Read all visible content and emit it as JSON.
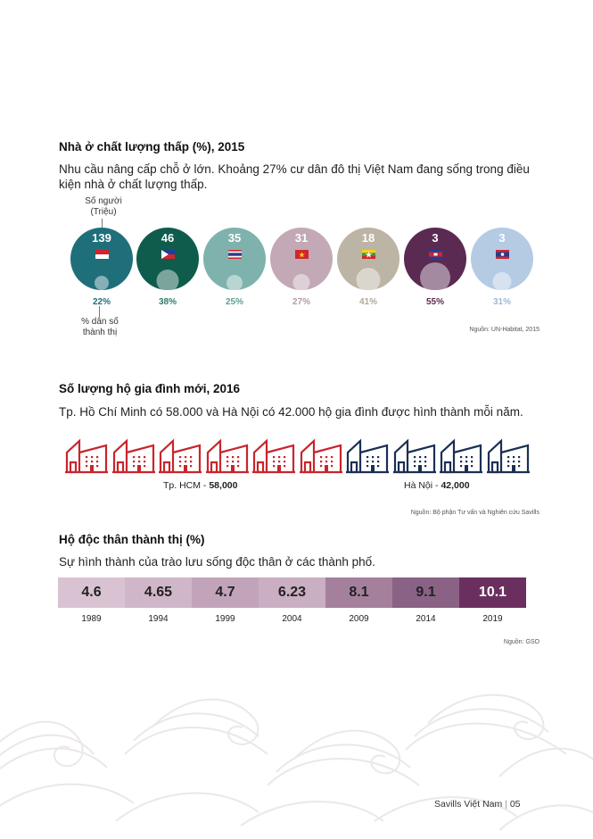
{
  "section1": {
    "title": "Nhà ở chất lượng thấp (%), 2015",
    "intro_line1": "Nhu cầu nâng cấp chỗ ở lớn. Khoảng 27% cư dân đô thị Việt Nam đang sống trong điều",
    "intro_line2": "kiện nhà ở chất lượng thấp.",
    "label_people_1": "Số người",
    "label_people_2": "(Triệu)",
    "label_urban_1": "% dân số",
    "label_urban_2": "thành thị",
    "source": "Nguồn: UN-Habitat, 2015",
    "countries": [
      {
        "people": "139",
        "pct": "22%",
        "color": "#1f6f7a",
        "pct_color": "#1f6f7a",
        "flag": "indonesia-flag",
        "value": 22
      },
      {
        "people": "46",
        "pct": "38%",
        "color": "#0f5c4c",
        "pct_color": "#2f7d6c",
        "flag": "philippines-flag",
        "value": 38
      },
      {
        "people": "35",
        "pct": "25%",
        "color": "#7fb2ad",
        "pct_color": "#5f9f99",
        "flag": "thailand-flag",
        "value": 25
      },
      {
        "people": "31",
        "pct": "27%",
        "color": "#c3a9b6",
        "pct_color": "#b69aa8",
        "flag": "vietnam-flag",
        "value": 27
      },
      {
        "people": "18",
        "pct": "41%",
        "color": "#bcb4a4",
        "pct_color": "#b0a896",
        "flag": "myanmar-flag",
        "value": 41
      },
      {
        "people": "3",
        "pct": "55%",
        "color": "#5a2a52",
        "pct_color": "#5a2a52",
        "flag": "cambodia-flag",
        "value": 55
      },
      {
        "people": "3",
        "pct": "31%",
        "color": "#b4cbe3",
        "pct_color": "#9db8d6",
        "flag": "laos-flag",
        "value": 31
      }
    ]
  },
  "section2": {
    "title": "Số lượng hộ gia đình mới, 2016",
    "intro": "Tp. Hồ Chí Minh có 58.000 và Hà Nội có 42.000 hộ gia đình được hình thành mỗi năm.",
    "hcm_label": "Tp. HCM - ",
    "hcm_value": "58,000",
    "hn_label": "Hà Nội - ",
    "hn_value": "42,000",
    "source": "Nguồn: Bộ phận Tư vấn và Nghiên cứu Savills",
    "hcm_color": "#c8252c",
    "hn_color": "#1b2f55",
    "hcm_houses": 6,
    "hn_houses": 4
  },
  "section3": {
    "title": "Hộ độc thân thành thị (%)",
    "intro": "Sự hình thành của trào lưu sống độc thân ở các thành phố.",
    "source": "Nguồn: GSO",
    "bars": [
      {
        "year": "1989",
        "value": "4.6",
        "color": "#d9c3d2",
        "text_color": "#222"
      },
      {
        "year": "1994",
        "value": "4.65",
        "color": "#cfb6c8",
        "text_color": "#222"
      },
      {
        "year": "1999",
        "value": "4.7",
        "color": "#c2a4ba",
        "text_color": "#222"
      },
      {
        "year": "2004",
        "value": "6.23",
        "color": "#caaec2",
        "text_color": "#222"
      },
      {
        "year": "2009",
        "value": "8.1",
        "color": "#a5809d",
        "text_color": "#222"
      },
      {
        "year": "2014",
        "value": "9.1",
        "color": "#8a6285",
        "text_color": "#222"
      },
      {
        "year": "2019",
        "value": "10.1",
        "color": "#6b2f5f",
        "text_color": "#ffffff"
      }
    ]
  },
  "footer": {
    "brand": "Savills Việt Nam",
    "separator": "|",
    "page": "05"
  }
}
